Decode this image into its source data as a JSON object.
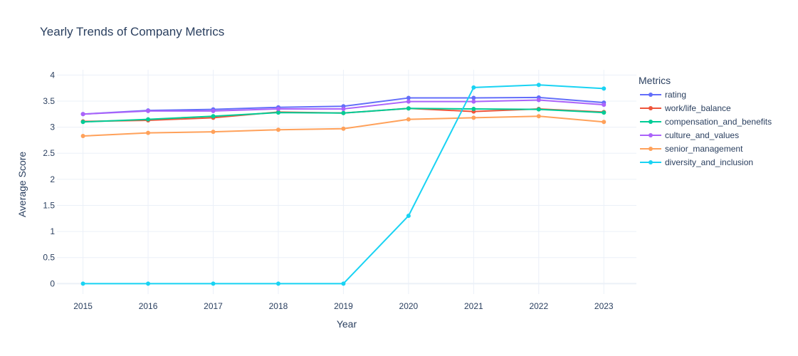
{
  "chart_data": {
    "type": "line",
    "title": "Yearly Trends of Company Metrics",
    "xlabel": "Year",
    "ylabel": "Average Score",
    "legend_title": "Metrics",
    "legend_position": "right",
    "grid": true,
    "x": [
      2015,
      2016,
      2017,
      2018,
      2019,
      2020,
      2021,
      2022,
      2023
    ],
    "xlim": [
      2014.6,
      2023.5
    ],
    "ylim": [
      -0.2,
      4.1
    ],
    "y_ticks": [
      "0",
      "0.5",
      "1",
      "1.5",
      "2",
      "2.5",
      "3",
      "3.5",
      "4"
    ],
    "series": [
      {
        "name": "rating",
        "color": "#636efa",
        "values": [
          3.25,
          3.32,
          3.34,
          3.38,
          3.4,
          3.56,
          3.56,
          3.57,
          3.47
        ]
      },
      {
        "name": "work/life_balance",
        "color": "#ef553b",
        "values": [
          3.11,
          3.13,
          3.18,
          3.29,
          3.27,
          3.36,
          3.3,
          3.35,
          3.29
        ]
      },
      {
        "name": "compensation_and_benefits",
        "color": "#00cc96",
        "values": [
          3.1,
          3.15,
          3.21,
          3.28,
          3.27,
          3.36,
          3.35,
          3.34,
          3.28
        ]
      },
      {
        "name": "culture_and_values",
        "color": "#ab63fa",
        "values": [
          3.25,
          3.31,
          3.31,
          3.35,
          3.35,
          3.49,
          3.49,
          3.52,
          3.43
        ]
      },
      {
        "name": "senior_management",
        "color": "#ffa15a",
        "values": [
          2.83,
          2.89,
          2.91,
          2.95,
          2.97,
          3.15,
          3.18,
          3.21,
          3.1
        ]
      },
      {
        "name": "diversity_and_inclusion",
        "color": "#19d3f3",
        "values": [
          0,
          0,
          0,
          0,
          0,
          1.3,
          3.76,
          3.81,
          3.74
        ]
      }
    ]
  }
}
